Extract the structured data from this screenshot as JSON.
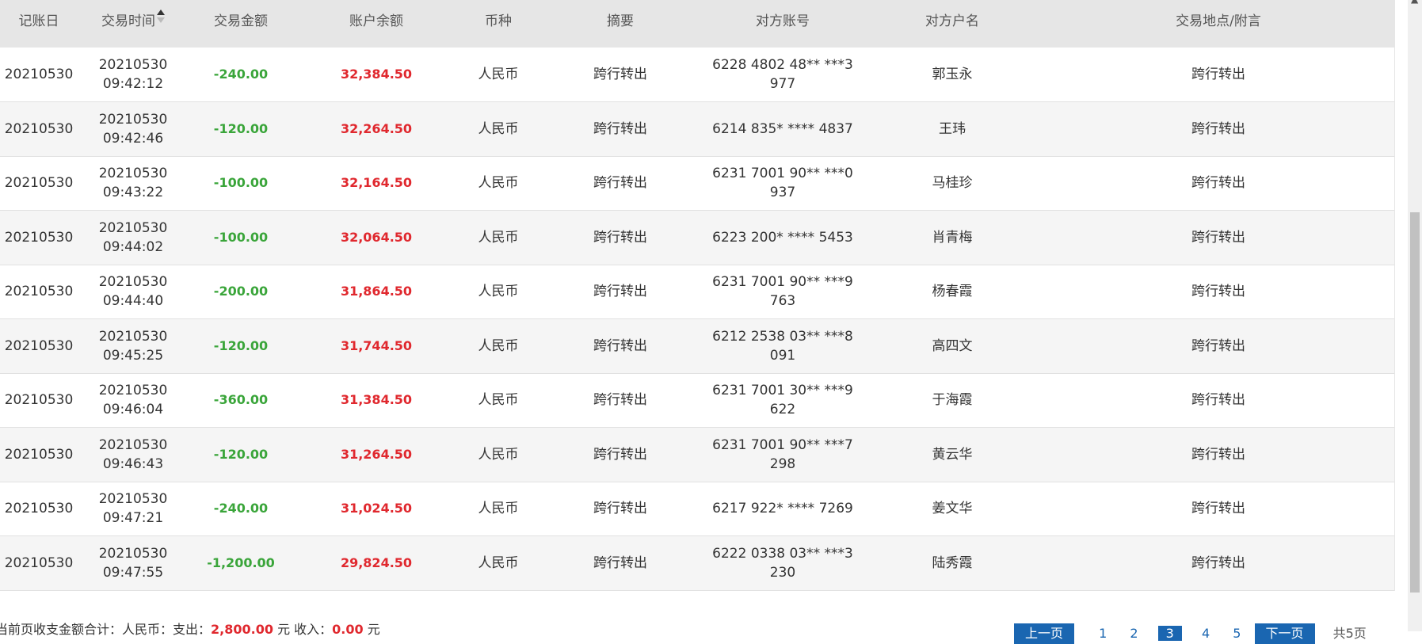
{
  "table": {
    "headers": [
      "记账日",
      "交易时间",
      "交易金额",
      "账户余额",
      "币种",
      "摘要",
      "对方账号",
      "对方户名",
      "交易地点/附言"
    ],
    "rows": [
      {
        "date": "20210530",
        "time_date": "20210530",
        "time_clock": "09:42:12",
        "amount": "-240.00",
        "balance": "32,384.50",
        "currency": "人民币",
        "summary": "跨行转出",
        "account": "6228 4802 48** ***3 977",
        "name": "郭玉永",
        "memo": "跨行转出"
      },
      {
        "date": "20210530",
        "time_date": "20210530",
        "time_clock": "09:42:46",
        "amount": "-120.00",
        "balance": "32,264.50",
        "currency": "人民币",
        "summary": "跨行转出",
        "account": "6214 835* **** 4837",
        "name": "王玮",
        "memo": "跨行转出"
      },
      {
        "date": "20210530",
        "time_date": "20210530",
        "time_clock": "09:43:22",
        "amount": "-100.00",
        "balance": "32,164.50",
        "currency": "人民币",
        "summary": "跨行转出",
        "account": "6231 7001 90** ***0 937",
        "name": "马桂珍",
        "memo": "跨行转出"
      },
      {
        "date": "20210530",
        "time_date": "20210530",
        "time_clock": "09:44:02",
        "amount": "-100.00",
        "balance": "32,064.50",
        "currency": "人民币",
        "summary": "跨行转出",
        "account": "6223 200* **** 5453",
        "name": "肖青梅",
        "memo": "跨行转出"
      },
      {
        "date": "20210530",
        "time_date": "20210530",
        "time_clock": "09:44:40",
        "amount": "-200.00",
        "balance": "31,864.50",
        "currency": "人民币",
        "summary": "跨行转出",
        "account": "6231 7001 90** ***9 763",
        "name": "杨春霞",
        "memo": "跨行转出"
      },
      {
        "date": "20210530",
        "time_date": "20210530",
        "time_clock": "09:45:25",
        "amount": "-120.00",
        "balance": "31,744.50",
        "currency": "人民币",
        "summary": "跨行转出",
        "account": "6212 2538 03** ***8 091",
        "name": "高四文",
        "memo": "跨行转出"
      },
      {
        "date": "20210530",
        "time_date": "20210530",
        "time_clock": "09:46:04",
        "amount": "-360.00",
        "balance": "31,384.50",
        "currency": "人民币",
        "summary": "跨行转出",
        "account": "6231 7001 30** ***9 622",
        "name": "于海霞",
        "memo": "跨行转出"
      },
      {
        "date": "20210530",
        "time_date": "20210530",
        "time_clock": "09:46:43",
        "amount": "-120.00",
        "balance": "31,264.50",
        "currency": "人民币",
        "summary": "跨行转出",
        "account": "6231 7001 90** ***7 298",
        "name": "黄云华",
        "memo": "跨行转出"
      },
      {
        "date": "20210530",
        "time_date": "20210530",
        "time_clock": "09:47:21",
        "amount": "-240.00",
        "balance": "31,024.50",
        "currency": "人民币",
        "summary": "跨行转出",
        "account": "6217 922* **** 7269",
        "name": "姜文华",
        "memo": "跨行转出"
      },
      {
        "date": "20210530",
        "time_date": "20210530",
        "time_clock": "09:47:55",
        "amount": "-1,200.00",
        "balance": "29,824.50",
        "currency": "人民币",
        "summary": "跨行转出",
        "account": "6222 0338 03** ***3 230",
        "name": "陆秀霞",
        "memo": "跨行转出"
      }
    ]
  },
  "footer": {
    "summary_prefix": "当前页收支金额合计：人民币：支出：",
    "expense": "2,800.00",
    "unit1": "元 收入：",
    "income": "0.00",
    "unit2": "元"
  },
  "pager": {
    "prev": "上一页",
    "pages": [
      "1",
      "2",
      "3",
      "4",
      "5"
    ],
    "active_page": "3",
    "next": "下一页",
    "total": "共5页"
  },
  "colors": {
    "header_bg": "#e6e6e6",
    "amount_green": "#3aa53a",
    "balance_red": "#e0282e",
    "pager_blue": "#1a66b1"
  },
  "icons": {
    "sort": "sort-asc-icon"
  }
}
